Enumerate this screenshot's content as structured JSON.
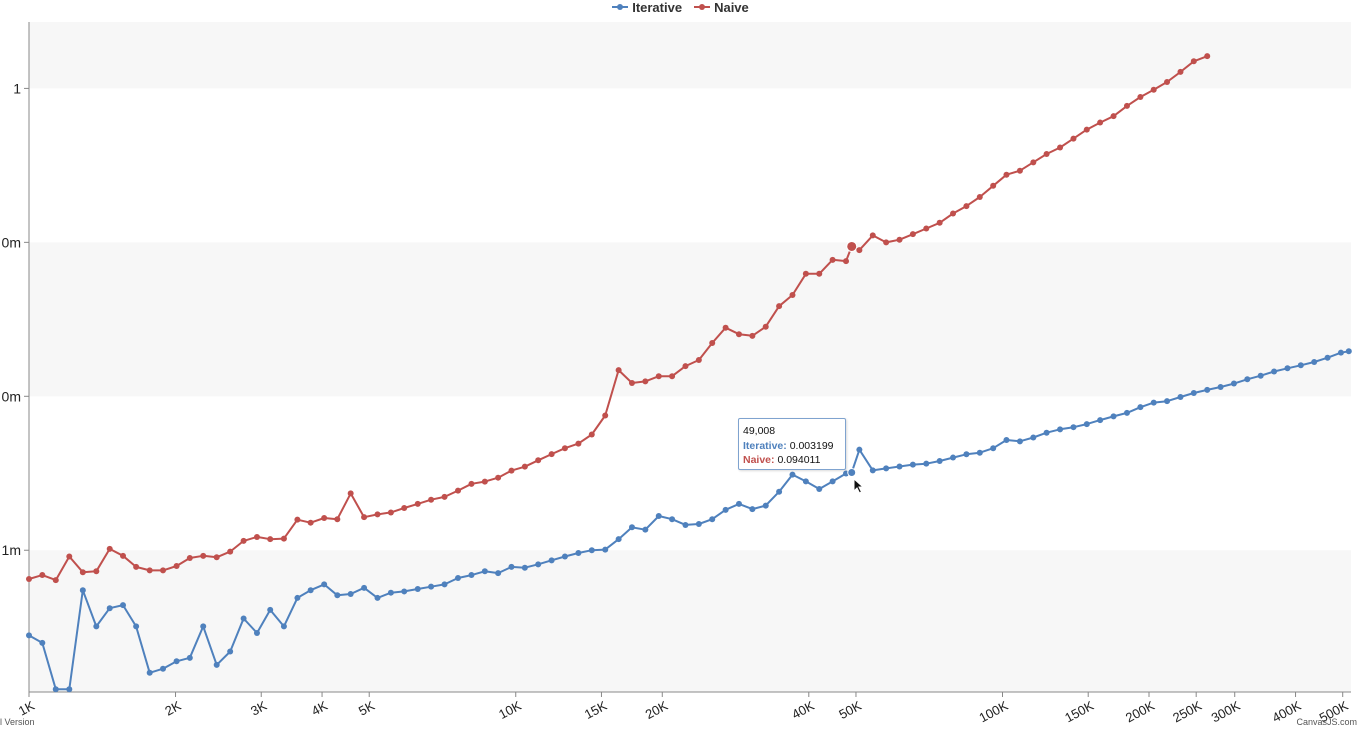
{
  "chart_data": {
    "type": "line",
    "title": "",
    "xlabel": "",
    "ylabel": "",
    "x_scale": "log",
    "y_scale": "log",
    "xlim": [
      1000,
      520000
    ],
    "ylim": [
      0.00012,
      2.7
    ],
    "x_ticks": [
      {
        "value": 1000,
        "label": "1K"
      },
      {
        "value": 2000,
        "label": "2K"
      },
      {
        "value": 3000,
        "label": "3K"
      },
      {
        "value": 4000,
        "label": "4K"
      },
      {
        "value": 5000,
        "label": "5K"
      },
      {
        "value": 10000,
        "label": "10K"
      },
      {
        "value": 15000,
        "label": "15K"
      },
      {
        "value": 20000,
        "label": "20K"
      },
      {
        "value": 40000,
        "label": "40K"
      },
      {
        "value": 50000,
        "label": "50K"
      },
      {
        "value": 100000,
        "label": "100K"
      },
      {
        "value": 150000,
        "label": "150K"
      },
      {
        "value": 200000,
        "label": "200K"
      },
      {
        "value": 250000,
        "label": "250K"
      },
      {
        "value": 300000,
        "label": "300K"
      },
      {
        "value": 400000,
        "label": "400K"
      },
      {
        "value": 500000,
        "label": "500K"
      }
    ],
    "y_ticks": [
      {
        "value": 0.001,
        "label": "1m"
      },
      {
        "value": 0.01,
        "label": "0m"
      },
      {
        "value": 0.1,
        "label": "0m"
      },
      {
        "value": 1,
        "label": "1"
      }
    ],
    "grid": "alternating horizontal bands",
    "legend": "top-center",
    "series": [
      {
        "name": "Iterative",
        "color": "#4f81bd",
        "points": [
          [
            1000,
            0.00028
          ],
          [
            1065,
            0.00025
          ],
          [
            1135,
            0.000125
          ],
          [
            1210,
            0.000125
          ],
          [
            1290,
            0.00055
          ],
          [
            1375,
            0.00032
          ],
          [
            1465,
            0.00042
          ],
          [
            1560,
            0.00044
          ],
          [
            1660,
            0.00032
          ],
          [
            1770,
            0.00016
          ],
          [
            1885,
            0.00017
          ],
          [
            2010,
            0.00019
          ],
          [
            2140,
            0.0002
          ],
          [
            2280,
            0.00032
          ],
          [
            2430,
            0.00018
          ],
          [
            2590,
            0.00022
          ],
          [
            2760,
            0.00036
          ],
          [
            2940,
            0.00029
          ],
          [
            3130,
            0.00041
          ],
          [
            3340,
            0.00032
          ],
          [
            3560,
            0.00049
          ],
          [
            3790,
            0.00055
          ],
          [
            4040,
            0.0006
          ],
          [
            4300,
            0.00051
          ],
          [
            4580,
            0.00052
          ],
          [
            4880,
            0.00057
          ],
          [
            5200,
            0.00049
          ],
          [
            5540,
            0.00053
          ],
          [
            5900,
            0.00054
          ],
          [
            6290,
            0.00056
          ],
          [
            6700,
            0.00058
          ],
          [
            7140,
            0.0006
          ],
          [
            7610,
            0.00066
          ],
          [
            8110,
            0.00069
          ],
          [
            8640,
            0.00073
          ],
          [
            9200,
            0.00071
          ],
          [
            9800,
            0.00078
          ],
          [
            10440,
            0.00077
          ],
          [
            11120,
            0.00081
          ],
          [
            11850,
            0.00086
          ],
          [
            12620,
            0.00091
          ],
          [
            13450,
            0.00096
          ],
          [
            14330,
            0.001
          ],
          [
            15270,
            0.00101
          ],
          [
            16270,
            0.00118
          ],
          [
            17330,
            0.00141
          ],
          [
            18460,
            0.00136
          ],
          [
            19670,
            0.00167
          ],
          [
            20950,
            0.00159
          ],
          [
            22320,
            0.00146
          ],
          [
            23780,
            0.00148
          ],
          [
            25330,
            0.00159
          ],
          [
            26990,
            0.00183
          ],
          [
            28750,
            0.002
          ],
          [
            30630,
            0.00185
          ],
          [
            32630,
            0.00195
          ],
          [
            34760,
            0.0024
          ],
          [
            37030,
            0.0031
          ],
          [
            39450,
            0.0028
          ],
          [
            42030,
            0.0025
          ],
          [
            44770,
            0.0028
          ],
          [
            47700,
            0.00315
          ],
          [
            49008,
            0.003199
          ],
          [
            50810,
            0.0045
          ],
          [
            54140,
            0.0033
          ],
          [
            57670,
            0.0034
          ],
          [
            61440,
            0.0035
          ],
          [
            65450,
            0.0036
          ],
          [
            69730,
            0.00365
          ],
          [
            74290,
            0.0038
          ],
          [
            79140,
            0.004
          ],
          [
            84310,
            0.0042
          ],
          [
            89820,
            0.0043
          ],
          [
            95690,
            0.0046
          ],
          [
            101900,
            0.0052
          ],
          [
            108600,
            0.0051
          ],
          [
            115700,
            0.0054
          ],
          [
            123200,
            0.0058
          ],
          [
            131300,
            0.0061
          ],
          [
            139900,
            0.0063
          ],
          [
            149000,
            0.0066
          ],
          [
            158700,
            0.007
          ],
          [
            169100,
            0.0074
          ],
          [
            180200,
            0.0078
          ],
          [
            192000,
            0.0085
          ],
          [
            204500,
            0.0091
          ],
          [
            217800,
            0.0093
          ],
          [
            232100,
            0.0099
          ],
          [
            247200,
            0.0105
          ],
          [
            263400,
            0.011
          ],
          [
            280600,
            0.0115
          ],
          [
            298900,
            0.0121
          ],
          [
            318400,
            0.0129
          ],
          [
            339200,
            0.0136
          ],
          [
            361400,
            0.0145
          ],
          [
            385000,
            0.0152
          ],
          [
            410100,
            0.0159
          ],
          [
            436900,
            0.0167
          ],
          [
            465400,
            0.0178
          ],
          [
            495800,
            0.0192
          ],
          [
            514600,
            0.0196
          ]
        ]
      },
      {
        "name": "Naive",
        "color": "#c0504d",
        "points": [
          [
            1000,
            0.00065
          ],
          [
            1065,
            0.00069
          ],
          [
            1135,
            0.00064
          ],
          [
            1210,
            0.00091
          ],
          [
            1290,
            0.00072
          ],
          [
            1375,
            0.00073
          ],
          [
            1465,
            0.00102
          ],
          [
            1560,
            0.00092
          ],
          [
            1660,
            0.00078
          ],
          [
            1770,
            0.00074
          ],
          [
            1885,
            0.00074
          ],
          [
            2010,
            0.00079
          ],
          [
            2140,
            0.00089
          ],
          [
            2280,
            0.00092
          ],
          [
            2430,
            0.0009
          ],
          [
            2590,
            0.00098
          ],
          [
            2760,
            0.00115
          ],
          [
            2940,
            0.00122
          ],
          [
            3130,
            0.00118
          ],
          [
            3340,
            0.00119
          ],
          [
            3560,
            0.00158
          ],
          [
            3790,
            0.00151
          ],
          [
            4040,
            0.00162
          ],
          [
            4300,
            0.00159
          ],
          [
            4580,
            0.00234
          ],
          [
            4880,
            0.00164
          ],
          [
            5200,
            0.00171
          ],
          [
            5540,
            0.00176
          ],
          [
            5900,
            0.00188
          ],
          [
            6290,
            0.002
          ],
          [
            6700,
            0.00213
          ],
          [
            7140,
            0.00222
          ],
          [
            7610,
            0.00244
          ],
          [
            8110,
            0.0027
          ],
          [
            8640,
            0.00279
          ],
          [
            9200,
            0.00296
          ],
          [
            9800,
            0.00329
          ],
          [
            10440,
            0.00349
          ],
          [
            11120,
            0.00384
          ],
          [
            11850,
            0.00421
          ],
          [
            12620,
            0.0046
          ],
          [
            13450,
            0.00493
          ],
          [
            14330,
            0.00565
          ],
          [
            15270,
            0.0075
          ],
          [
            16270,
            0.0148
          ],
          [
            17330,
            0.0122
          ],
          [
            18460,
            0.0125
          ],
          [
            19670,
            0.0135
          ],
          [
            20950,
            0.0135
          ],
          [
            22320,
            0.0157
          ],
          [
            23780,
            0.0172
          ],
          [
            25330,
            0.0222
          ],
          [
            26990,
            0.0279
          ],
          [
            28750,
            0.0253
          ],
          [
            30630,
            0.0247
          ],
          [
            32630,
            0.0283
          ],
          [
            34760,
            0.0385
          ],
          [
            37030,
            0.0455
          ],
          [
            39450,
            0.0625
          ],
          [
            42030,
            0.0625
          ],
          [
            44770,
            0.077
          ],
          [
            47700,
            0.0755
          ],
          [
            49008,
            0.094011
          ],
          [
            50810,
            0.089
          ],
          [
            54140,
            0.111
          ],
          [
            57670,
            0.1
          ],
          [
            61440,
            0.104
          ],
          [
            65450,
            0.113
          ],
          [
            69730,
            0.123
          ],
          [
            74290,
            0.134
          ],
          [
            79140,
            0.154
          ],
          [
            84310,
            0.172
          ],
          [
            89820,
            0.197
          ],
          [
            95690,
            0.233
          ],
          [
            101900,
            0.275
          ],
          [
            108600,
            0.292
          ],
          [
            115700,
            0.331
          ],
          [
            123200,
            0.375
          ],
          [
            131300,
            0.413
          ],
          [
            139900,
            0.472
          ],
          [
            149000,
            0.54
          ],
          [
            158700,
            0.6
          ],
          [
            169100,
            0.66
          ],
          [
            180200,
            0.77
          ],
          [
            192000,
            0.88
          ],
          [
            204500,
            0.98
          ],
          [
            217800,
            1.1
          ],
          [
            232100,
            1.28
          ],
          [
            247200,
            1.5
          ],
          [
            263400,
            1.62
          ]
        ]
      }
    ],
    "highlight": {
      "x": 49008,
      "size": "large"
    },
    "tooltip": {
      "header": "49,008",
      "rows": [
        {
          "label": "Iterative:",
          "value": "0.003199",
          "color": "#4f81bd"
        },
        {
          "label": "Naive:",
          "value": "0.094011",
          "color": "#c0504d"
        }
      ]
    },
    "credits": {
      "left": "l Version",
      "right": "CanvasJS.com"
    }
  }
}
